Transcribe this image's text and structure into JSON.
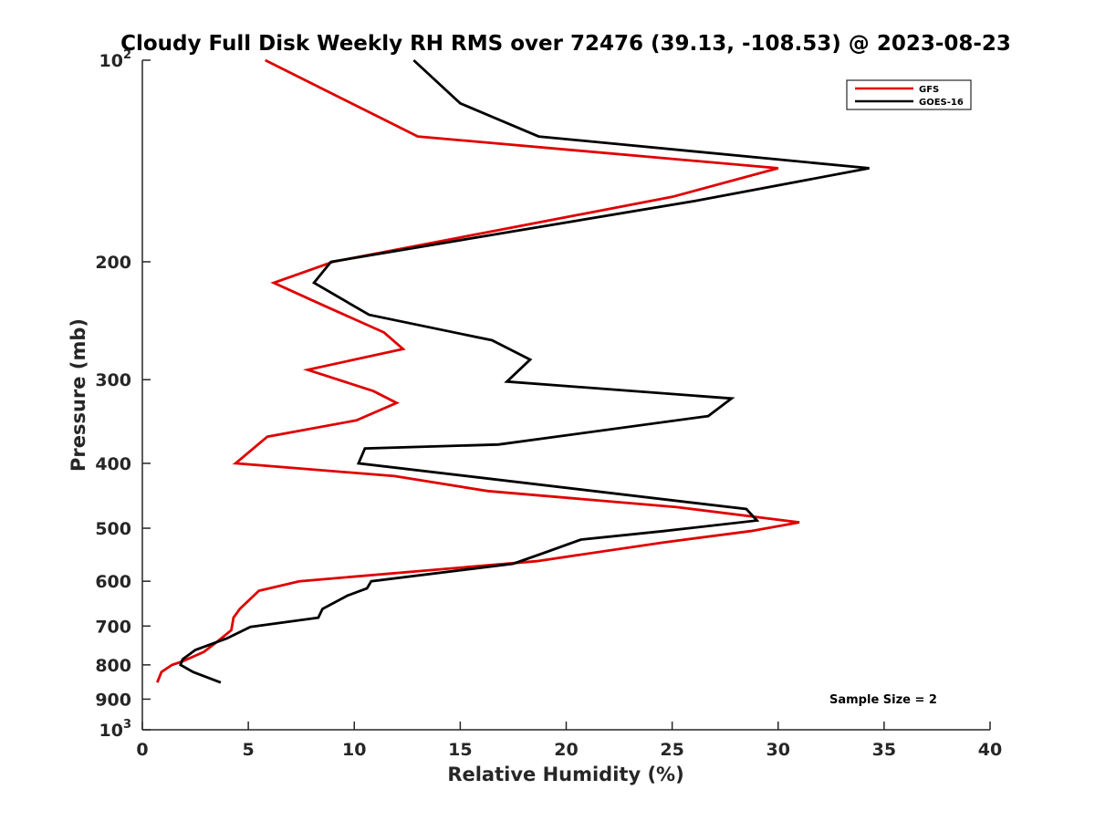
{
  "chart_data": {
    "type": "line",
    "title": "Cloudy Full Disk Weekly RH RMS over 72476 (39.13, -108.53) @ 2023-08-23",
    "xlabel": "Relative Humidity (%)",
    "ylabel": "Pressure (mb)",
    "xlim": [
      0,
      40
    ],
    "ylim": [
      100,
      1000
    ],
    "yscale": "log",
    "y_reversed": true,
    "grid": false,
    "legend_position": "top-right",
    "x_ticks": [
      0,
      5,
      10,
      15,
      20,
      25,
      30,
      35,
      40
    ],
    "x_tick_labels": [
      "0",
      "5",
      "10",
      "15",
      "20",
      "25",
      "30",
      "35",
      "40"
    ],
    "y_ticks": [
      100,
      200,
      300,
      400,
      500,
      600,
      700,
      800,
      900,
      1000
    ],
    "y_tick_labels": [
      {
        "base": "10",
        "exp": "2"
      },
      {
        "base": "200",
        "exp": ""
      },
      {
        "base": "300",
        "exp": ""
      },
      {
        "base": "400",
        "exp": ""
      },
      {
        "base": "500",
        "exp": ""
      },
      {
        "base": "600",
        "exp": ""
      },
      {
        "base": "700",
        "exp": ""
      },
      {
        "base": "800",
        "exp": ""
      },
      {
        "base": "900",
        "exp": ""
      },
      {
        "base": "10",
        "exp": "3"
      }
    ],
    "series": [
      {
        "name": "GFS",
        "color": "#e00000",
        "x": [
          5.8,
          13.0,
          30.0,
          25.0,
          9.0,
          6.2,
          8.5,
          11.4,
          12.3,
          7.8,
          10.9,
          12.0,
          10.1,
          5.9,
          4.4,
          11.9,
          16.3,
          25.2,
          31.0,
          28.7,
          24.6,
          18.6,
          7.4,
          5.5,
          4.6,
          4.3,
          4.2,
          3.5,
          2.9,
          1.9,
          1.4,
          0.9,
          0.7
        ],
        "y": [
          100,
          130,
          145,
          160,
          200,
          215,
          232,
          255,
          270,
          290,
          312,
          325,
          345,
          365,
          400,
          418,
          440,
          465,
          490,
          505,
          525,
          560,
          600,
          620,
          660,
          680,
          710,
          740,
          765,
          790,
          800,
          820,
          850
        ]
      },
      {
        "name": "GOES-16",
        "color": "#000000",
        "x": [
          12.8,
          15.0,
          18.7,
          34.3,
          26.2,
          8.9,
          8.1,
          10.7,
          16.5,
          18.3,
          17.2,
          27.8,
          26.7,
          16.8,
          10.5,
          10.2,
          28.5,
          29.0,
          24.6,
          20.7,
          18.9,
          17.5,
          10.8,
          10.6,
          9.7,
          8.5,
          8.3,
          5.1,
          4.0,
          2.5,
          1.9,
          1.8,
          2.4,
          3.7
        ],
        "y": [
          100,
          116,
          130,
          145,
          162,
          200,
          215,
          240,
          262,
          280,
          302,
          320,
          340,
          375,
          380,
          400,
          468,
          487,
          505,
          520,
          545,
          565,
          600,
          615,
          630,
          660,
          680,
          702,
          730,
          760,
          785,
          800,
          820,
          850
        ]
      }
    ],
    "annotations": [
      {
        "text": "Sample Size = 2"
      }
    ]
  }
}
